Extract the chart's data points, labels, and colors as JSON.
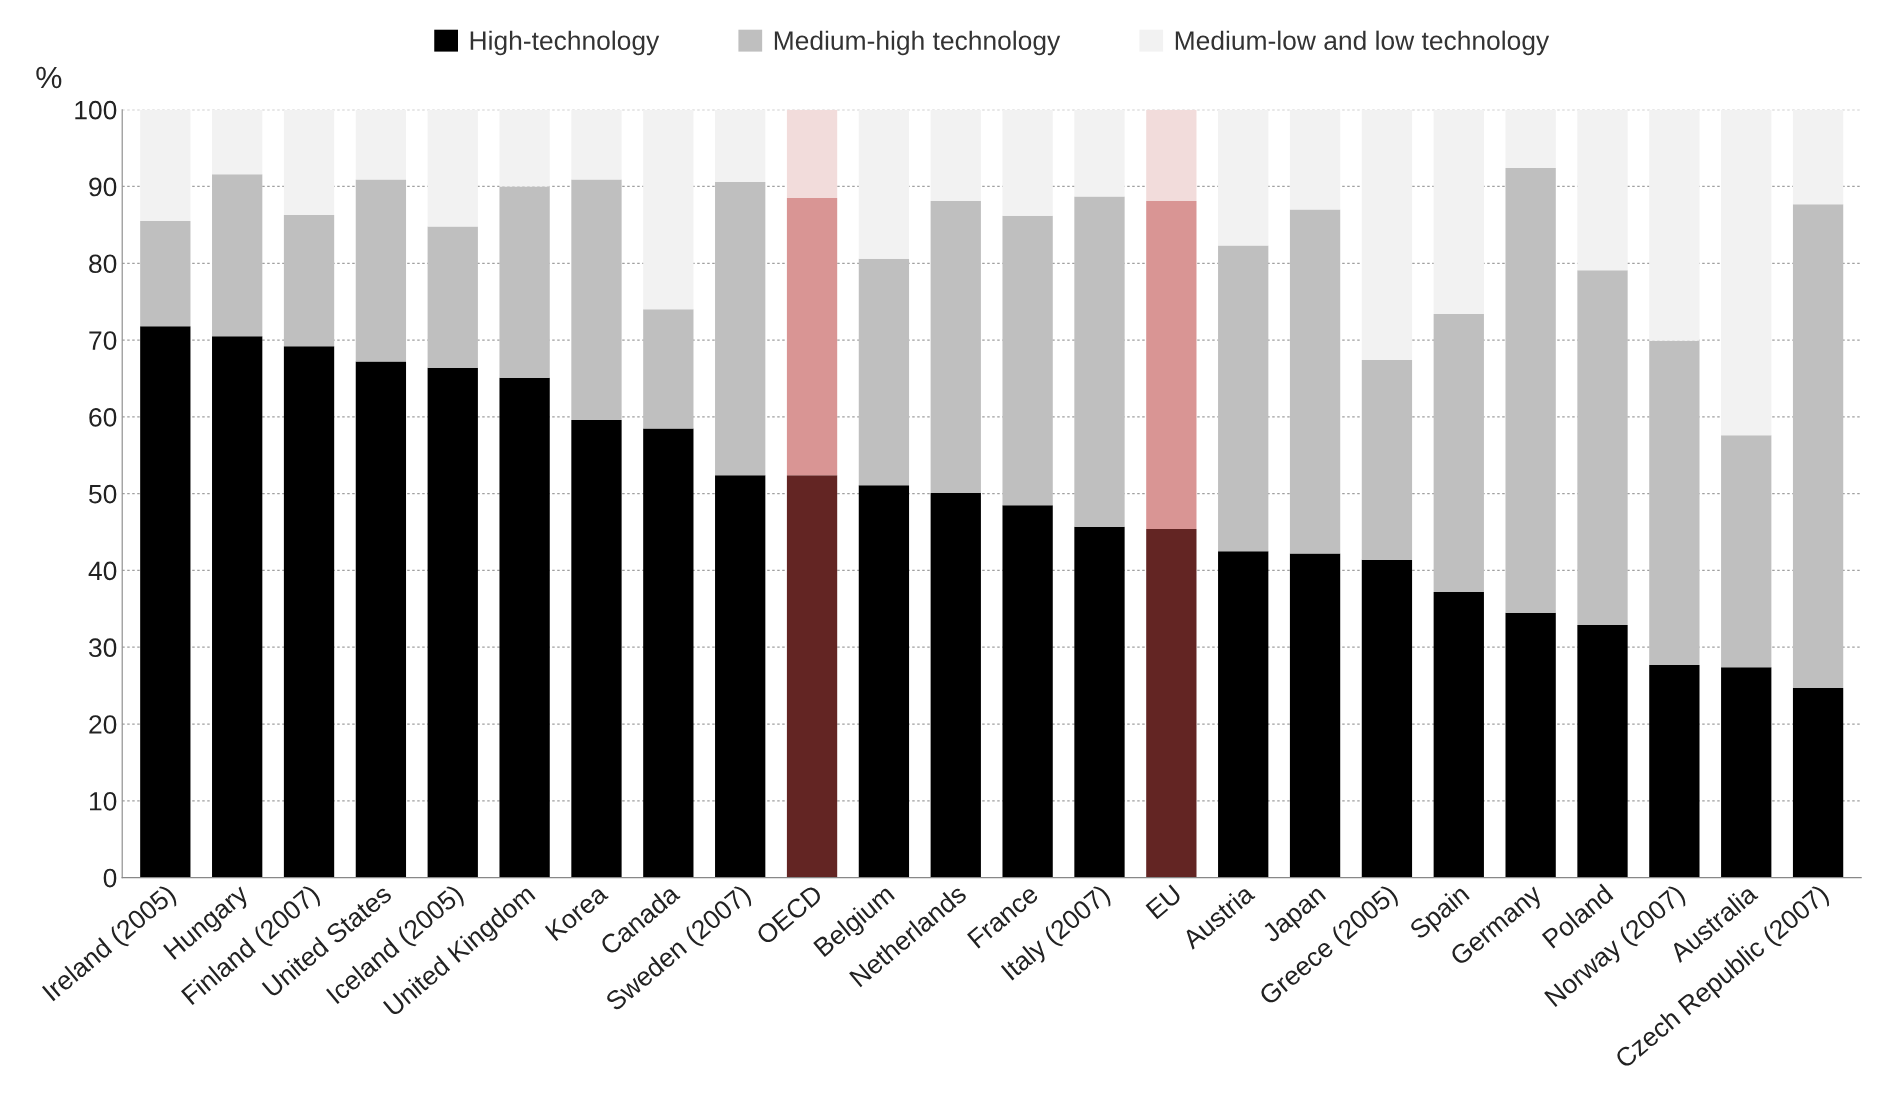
{
  "chart_data": {
    "type": "bar",
    "stacked": true,
    "ylabel": "%",
    "categories": [
      "Ireland (2005)",
      "Hungary",
      "Finland (2007)",
      "United States",
      "Iceland (2005)",
      "United Kingdom",
      "Korea",
      "Canada",
      "Sweden (2007)",
      "OECD",
      "Belgium",
      "Netherlands",
      "France",
      "Italy (2007)",
      "EU",
      "Austria",
      "Japan",
      "Greece (2005)",
      "Spain",
      "Germany",
      "Poland",
      "Norway (2007)",
      "Australia",
      "Czech Republic (2007)"
    ],
    "series": [
      {
        "name": "High-technology",
        "colors": [
          "#000000",
          "#000000",
          "#000000",
          "#000000",
          "#000000",
          "#000000",
          "#000000",
          "#000000",
          "#000000",
          "#632523",
          "#000000",
          "#000000",
          "#000000",
          "#000000",
          "#632523",
          "#000000",
          "#000000",
          "#000000",
          "#000000",
          "#000000",
          "#000000",
          "#000000",
          "#000000",
          "#000000"
        ],
        "values": [
          71.8,
          70.5,
          69.2,
          67.2,
          66.4,
          65.1,
          59.6,
          58.5,
          52.4,
          52.4,
          51.1,
          50.1,
          48.5,
          45.7,
          45.4,
          42.5,
          42.2,
          41.4,
          37.2,
          34.5,
          32.9,
          27.7,
          27.4,
          24.7
        ]
      },
      {
        "name": "Medium-high technology",
        "colors": [
          "#bfbfbf",
          "#bfbfbf",
          "#bfbfbf",
          "#bfbfbf",
          "#bfbfbf",
          "#bfbfbf",
          "#bfbfbf",
          "#bfbfbf",
          "#bfbfbf",
          "#d99594",
          "#bfbfbf",
          "#bfbfbf",
          "#bfbfbf",
          "#bfbfbf",
          "#d99594",
          "#bfbfbf",
          "#bfbfbf",
          "#bfbfbf",
          "#bfbfbf",
          "#bfbfbf",
          "#bfbfbf",
          "#bfbfbf",
          "#bfbfbf",
          "#bfbfbf"
        ],
        "values": [
          13.7,
          21.1,
          17.1,
          23.7,
          18.4,
          24.9,
          31.3,
          15.5,
          38.2,
          36.1,
          29.5,
          38.0,
          37.7,
          43.0,
          42.7,
          39.8,
          44.8,
          26.0,
          36.2,
          57.9,
          46.2,
          42.2,
          30.2,
          63.0
        ]
      },
      {
        "name": "Medium-low and low technology",
        "colors": [
          "#f2f2f2",
          "#f2f2f2",
          "#f2f2f2",
          "#f2f2f2",
          "#f2f2f2",
          "#f2f2f2",
          "#f2f2f2",
          "#f2f2f2",
          "#f2f2f2",
          "#f2dcdb",
          "#f2f2f2",
          "#f2f2f2",
          "#f2f2f2",
          "#f2f2f2",
          "#f2dcdb",
          "#f2f2f2",
          "#f2f2f2",
          "#f2f2f2",
          "#f2f2f2",
          "#f2f2f2",
          "#f2f2f2",
          "#f2f2f2",
          "#f2f2f2",
          "#f2f2f2"
        ],
        "values": [
          14.5,
          8.4,
          13.7,
          9.1,
          15.2,
          10.0,
          9.1,
          26.0,
          9.4,
          11.5,
          19.4,
          11.9,
          13.8,
          11.3,
          11.9,
          17.7,
          13.0,
          32.6,
          26.6,
          7.6,
          20.9,
          30.1,
          42.4,
          12.3
        ]
      }
    ],
    "ylim": [
      0,
      100
    ],
    "yticks": [
      0,
      10,
      20,
      30,
      40,
      50,
      60,
      70,
      80,
      90,
      100
    ],
    "grid": "y",
    "legend": "top"
  }
}
